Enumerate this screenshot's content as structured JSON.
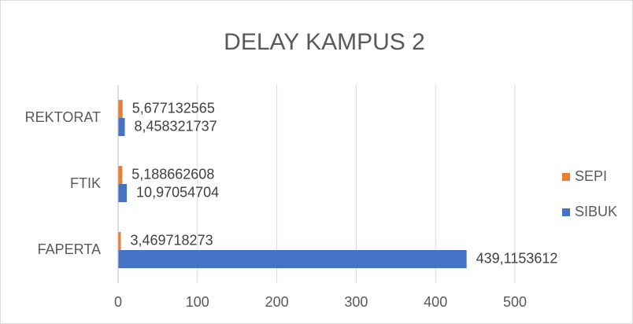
{
  "chart_data": {
    "type": "hbar",
    "title": "DELAY KAMPUS 2",
    "categories": [
      "FAPERTA",
      "FTIK",
      "REKTORAT"
    ],
    "series": [
      {
        "name": "SIBUK",
        "color": "#4472c4",
        "values": [
          439.1153612,
          10.97054704,
          8.458321737
        ],
        "value_labels": [
          "439,1153612",
          "10,97054704",
          "8,458321737"
        ]
      },
      {
        "name": "SEPI",
        "color": "#ed7d31",
        "values": [
          3.469718273,
          5.188662608,
          5.677132565
        ],
        "value_labels": [
          "3,469718273",
          "5,188662608",
          "5,677132565"
        ]
      }
    ],
    "xlim": [
      0,
      500
    ],
    "xticks": [
      0,
      100,
      200,
      300,
      400,
      500
    ],
    "grid": true,
    "legend": "right"
  }
}
